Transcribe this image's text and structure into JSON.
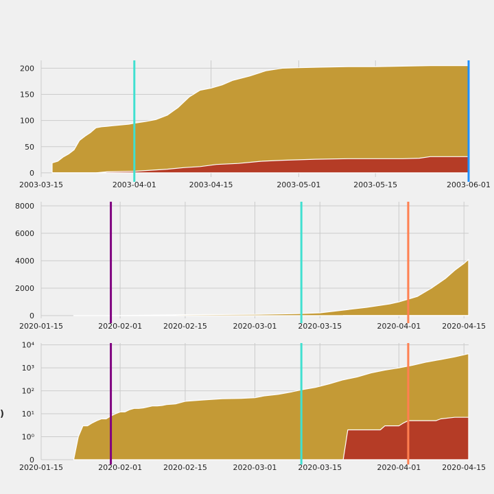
{
  "colors": {
    "background": "#f0f0f0",
    "grid": "#cbcbcb",
    "cumulative_fill": "#c49a36",
    "deaths_fill": "#b53c26",
    "edge": "#ffffff"
  },
  "chart_data": [
    {
      "type": "area",
      "grid": true,
      "yscale": "linear",
      "xlim": [
        "2003-03-15",
        "2003-06-01"
      ],
      "ylim": [
        -8,
        215
      ],
      "yticks": [
        0,
        50,
        100,
        150,
        200
      ],
      "ytick_labels": [
        "0",
        "50",
        "100",
        "150",
        "200"
      ],
      "xticks": [
        "2003-03-15",
        "2003-04-01",
        "2003-04-15",
        "2003-05-01",
        "2003-05-15",
        "2003-06-01"
      ],
      "xtick_labels": [
        "2003-03-15",
        "2003-04-01",
        "2003-04-15",
        "2003-05-01",
        "2003-05-15",
        "2003-06-01"
      ],
      "series": [
        {
          "role": "cumulative",
          "x": [
            "2003-03-17",
            "2003-03-18",
            "2003-03-19",
            "2003-03-20",
            "2003-03-21",
            "2003-03-22",
            "2003-03-23",
            "2003-03-24",
            "2003-03-25",
            "2003-03-26",
            "2003-03-27",
            "2003-03-28",
            "2003-03-29",
            "2003-03-30",
            "2003-03-31",
            "2003-04-01",
            "2003-04-03",
            "2003-04-05",
            "2003-04-07",
            "2003-04-09",
            "2003-04-11",
            "2003-04-13",
            "2003-04-15",
            "2003-04-17",
            "2003-04-19",
            "2003-04-22",
            "2003-04-25",
            "2003-04-28",
            "2003-05-01",
            "2003-05-05",
            "2003-05-10",
            "2003-05-15",
            "2003-05-20",
            "2003-05-25",
            "2003-06-01"
          ],
          "values": [
            19,
            22,
            30,
            36,
            44,
            62,
            70,
            77,
            86,
            88,
            89,
            90,
            91,
            92,
            93,
            95,
            98,
            102,
            110,
            125,
            145,
            158,
            162,
            168,
            177,
            185,
            195,
            200,
            201,
            202,
            203,
            203,
            204,
            205,
            205
          ]
        },
        {
          "role": "deaths",
          "x": [
            "2003-03-17",
            "2003-03-25",
            "2003-03-27",
            "2003-04-01",
            "2003-04-04",
            "2003-04-07",
            "2003-04-10",
            "2003-04-13",
            "2003-04-16",
            "2003-04-20",
            "2003-04-24",
            "2003-04-28",
            "2003-05-04",
            "2003-05-10",
            "2003-05-20",
            "2003-05-23",
            "2003-05-25",
            "2003-06-01"
          ],
          "values": [
            0,
            0,
            2,
            3,
            5,
            7,
            10,
            12,
            16,
            18,
            22,
            24,
            26,
            27,
            27,
            28,
            31,
            31
          ]
        }
      ],
      "vlines": [
        {
          "x": "2003-04-01",
          "color": "#40e0d0"
        },
        {
          "x": "2003-06-01",
          "color": "#1e90ff"
        }
      ]
    },
    {
      "type": "area",
      "grid": true,
      "yscale": "linear",
      "xlim": [
        "2020-01-15",
        "2020-04-16"
      ],
      "ylim": [
        -200,
        8300
      ],
      "yticks": [
        0,
        2000,
        4000,
        6000,
        8000
      ],
      "ytick_labels": [
        "0",
        "2000",
        "4000",
        "6000",
        "8000"
      ],
      "xticks": [
        "2020-01-15",
        "2020-02-01",
        "2020-02-15",
        "2020-03-01",
        "2020-03-15",
        "2020-04-01",
        "2020-04-15"
      ],
      "xtick_labels": [
        "2020-01-15",
        "2020-02-01",
        "2020-02-15",
        "2020-03-01",
        "2020-03-15",
        "2020-04-01",
        "2020-04-15"
      ],
      "series": [
        {
          "role": "cumulative",
          "x": [
            "2020-01-22",
            "2020-02-01",
            "2020-02-15",
            "2020-03-01",
            "2020-03-10",
            "2020-03-15",
            "2020-03-20",
            "2020-03-25",
            "2020-03-30",
            "2020-04-01",
            "2020-04-05",
            "2020-04-08",
            "2020-04-11",
            "2020-04-13",
            "2020-04-15",
            "2020-04-16"
          ],
          "values": [
            0,
            10,
            70,
            90,
            140,
            200,
            400,
            600,
            850,
            1000,
            1400,
            2000,
            2700,
            3300,
            3800,
            4100
          ]
        },
        {
          "role": "deaths",
          "x": [
            "2020-03-20",
            "2020-04-01",
            "2020-04-16"
          ],
          "values": [
            3,
            6,
            10
          ]
        }
      ],
      "vlines": [
        {
          "x": "2020-01-30",
          "color": "#800080"
        },
        {
          "x": "2020-03-11",
          "color": "#40e0d0"
        },
        {
          "x": "2020-04-03",
          "color": "#ff7f50"
        }
      ]
    },
    {
      "type": "area",
      "grid": true,
      "yscale": "symlog",
      "xlim": [
        "2020-01-15",
        "2020-04-16"
      ],
      "ylim": [
        0,
        12000
      ],
      "yticks": [
        0,
        1,
        10,
        100,
        1000,
        10000
      ],
      "ytick_labels": [
        "0",
        "10⁰",
        "10¹",
        "10²",
        "10³",
        "10⁴"
      ],
      "xticks": [
        "2020-01-15",
        "2020-02-01",
        "2020-02-15",
        "2020-03-01",
        "2020-03-15",
        "2020-04-01",
        "2020-04-15"
      ],
      "xtick_labels": [
        "2020-01-15",
        "2020-02-01",
        "2020-02-15",
        "2020-03-01",
        "2020-03-15",
        "2020-04-01",
        "2020-04-15"
      ],
      "series": [
        {
          "role": "cumulative",
          "x": [
            "2020-01-22",
            "2020-01-23",
            "2020-01-24",
            "2020-01-25",
            "2020-01-26",
            "2020-01-27",
            "2020-01-28",
            "2020-01-29",
            "2020-01-30",
            "2020-01-31",
            "2020-02-01",
            "2020-02-02",
            "2020-02-03",
            "2020-02-04",
            "2020-02-05",
            "2020-02-06",
            "2020-02-07",
            "2020-02-08",
            "2020-02-09",
            "2020-02-10",
            "2020-02-11",
            "2020-02-13",
            "2020-02-15",
            "2020-02-19",
            "2020-02-23",
            "2020-02-27",
            "2020-03-01",
            "2020-03-03",
            "2020-03-06",
            "2020-03-09",
            "2020-03-11",
            "2020-03-14",
            "2020-03-17",
            "2020-03-20",
            "2020-03-23",
            "2020-03-26",
            "2020-03-29",
            "2020-04-01",
            "2020-04-04",
            "2020-04-07",
            "2020-04-10",
            "2020-04-13",
            "2020-04-16"
          ],
          "values": [
            0,
            1,
            3,
            3,
            4,
            5,
            6,
            6,
            8,
            10,
            12,
            12,
            15,
            17,
            17,
            18,
            20,
            22,
            22,
            23,
            25,
            27,
            35,
            40,
            45,
            47,
            50,
            60,
            70,
            90,
            110,
            140,
            200,
            300,
            400,
            600,
            800,
            1000,
            1300,
            1800,
            2300,
            3000,
            4100
          ]
        },
        {
          "role": "deaths",
          "x": [
            "2020-03-20",
            "2020-03-21",
            "2020-03-28",
            "2020-03-29",
            "2020-04-01",
            "2020-04-02",
            "2020-04-03",
            "2020-04-09",
            "2020-04-10",
            "2020-04-13",
            "2020-04-16"
          ],
          "values": [
            0,
            2,
            2,
            3,
            3,
            4,
            5,
            5,
            6,
            7,
            7
          ]
        }
      ],
      "vlines": [
        {
          "x": "2020-01-30",
          "color": "#800080"
        },
        {
          "x": "2020-03-11",
          "color": "#40e0d0"
        },
        {
          "x": "2020-04-03",
          "color": "#ff7f50"
        }
      ]
    }
  ],
  "side_label": ")"
}
